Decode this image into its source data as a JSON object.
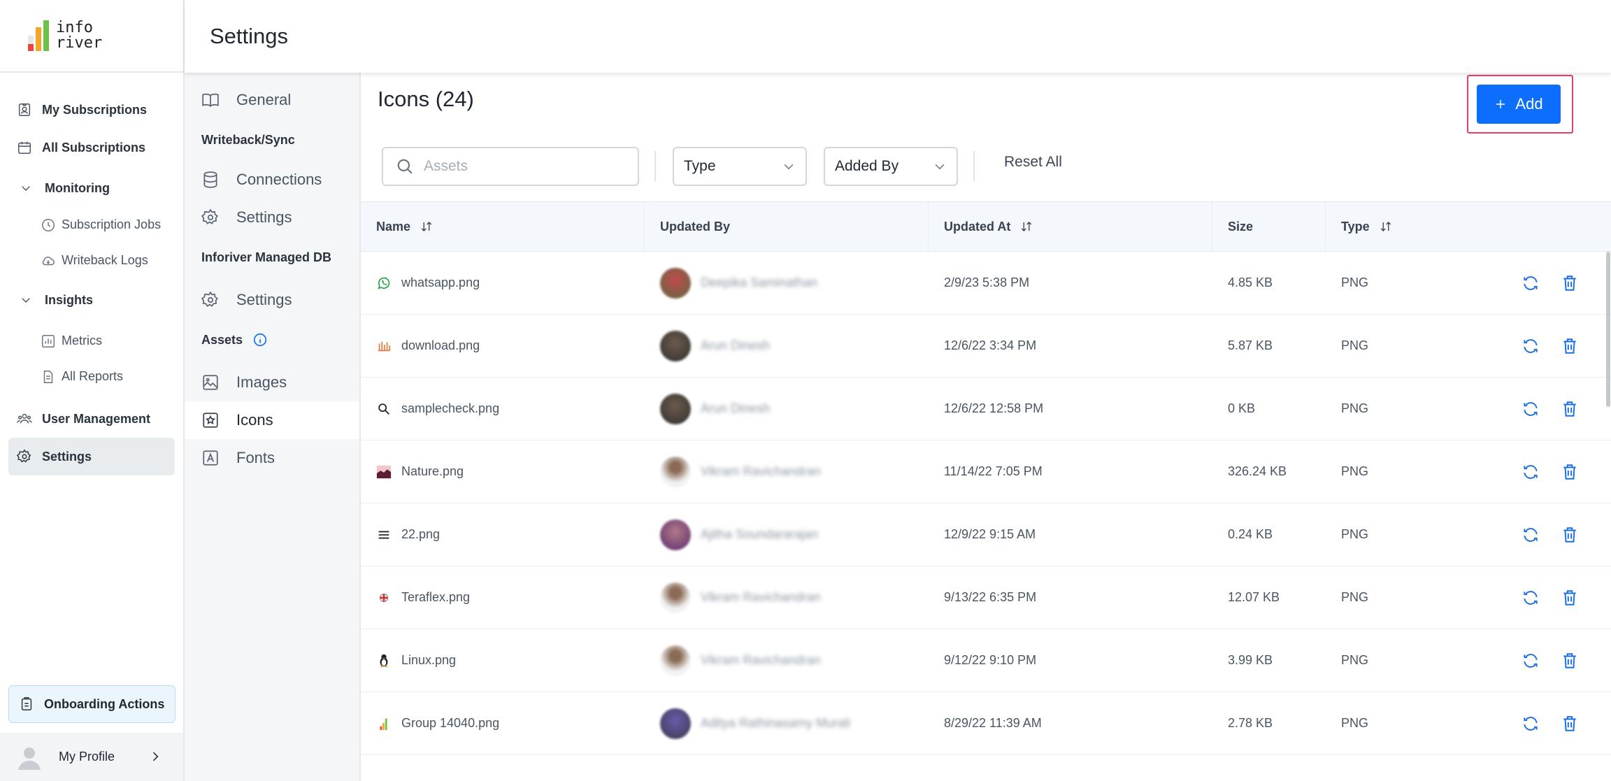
{
  "app": {
    "logo_line1": "info",
    "logo_line2": "river"
  },
  "sidebar": {
    "items": [
      {
        "label": "My Subscriptions",
        "icon": "badge-icon"
      },
      {
        "label": "All Subscriptions",
        "icon": "calendar-icon"
      },
      {
        "label": "Monitoring",
        "icon": "chevron-down-icon"
      },
      {
        "label": "Subscription Jobs",
        "icon": "clock-icon"
      },
      {
        "label": "Writeback Logs",
        "icon": "cloud-icon"
      },
      {
        "label": "Insights",
        "icon": "chevron-down-icon"
      },
      {
        "label": "Metrics",
        "icon": "bar-chart-icon"
      },
      {
        "label": "All Reports",
        "icon": "document-icon"
      },
      {
        "label": "User Management",
        "icon": "users-icon"
      },
      {
        "label": "Settings",
        "icon": "gear-icon"
      }
    ],
    "onboarding": "Onboarding Actions",
    "profile": "My Profile"
  },
  "header": {
    "title": "Settings"
  },
  "subnav": {
    "general": "General",
    "writeback_heading": "Writeback/Sync",
    "connections": "Connections",
    "wb_settings": "Settings",
    "managed_heading": "Inforiver Managed DB",
    "db_settings": "Settings",
    "assets_heading": "Assets",
    "images": "Images",
    "icons": "Icons",
    "fonts": "Fonts"
  },
  "main": {
    "title": "Icons (24)",
    "add_label": "Add",
    "search_placeholder": "Assets",
    "filter_type": "Type",
    "filter_added_by": "Added By",
    "reset": "Reset All"
  },
  "table": {
    "columns": [
      "Name",
      "Updated By",
      "Updated At",
      "Size",
      "Type"
    ],
    "rows": [
      {
        "name": "whatsapp.png",
        "updated_by": "Deepika Saminathan",
        "updated_at": "2/9/23 5:38 PM",
        "size": "4.85 KB",
        "type": "PNG",
        "icon": "whatsapp-icon"
      },
      {
        "name": "download.png",
        "updated_by": "Arun Dinesh",
        "updated_at": "12/6/22 3:34 PM",
        "size": "5.87 KB",
        "type": "PNG",
        "icon": "download-thumbnail-icon"
      },
      {
        "name": "samplecheck.png",
        "updated_by": "Arun Dinesh",
        "updated_at": "12/6/22 12:58 PM",
        "size": "0 KB",
        "type": "PNG",
        "icon": "search-icon"
      },
      {
        "name": "Nature.png",
        "updated_by": "Vikram Ravichandran",
        "updated_at": "11/14/22 7:05 PM",
        "size": "326.24 KB",
        "type": "PNG",
        "icon": "landscape-icon"
      },
      {
        "name": "22.png",
        "updated_by": "Ajitha Soundararajan",
        "updated_at": "12/9/22 9:15 AM",
        "size": "0.24 KB",
        "type": "PNG",
        "icon": "menu-icon"
      },
      {
        "name": "Teraflex.png",
        "updated_by": "Vikram Ravichandran",
        "updated_at": "9/13/22 6:35 PM",
        "size": "12.07 KB",
        "type": "PNG",
        "icon": "teraflex-icon"
      },
      {
        "name": "Linux.png",
        "updated_by": "Vikram Ravichandran",
        "updated_at": "9/12/22 9:10 PM",
        "size": "3.99 KB",
        "type": "PNG",
        "icon": "linux-icon"
      },
      {
        "name": "Group 14040.png",
        "updated_by": "Aditya Rathinasamy Murali",
        "updated_at": "8/29/22 11:39 AM",
        "size": "2.78 KB",
        "type": "PNG",
        "icon": "bars-icon"
      }
    ]
  },
  "colors": {
    "accent": "#0d6efd",
    "highlight": "#e83e6c",
    "active_nav": "#e9ecef"
  }
}
